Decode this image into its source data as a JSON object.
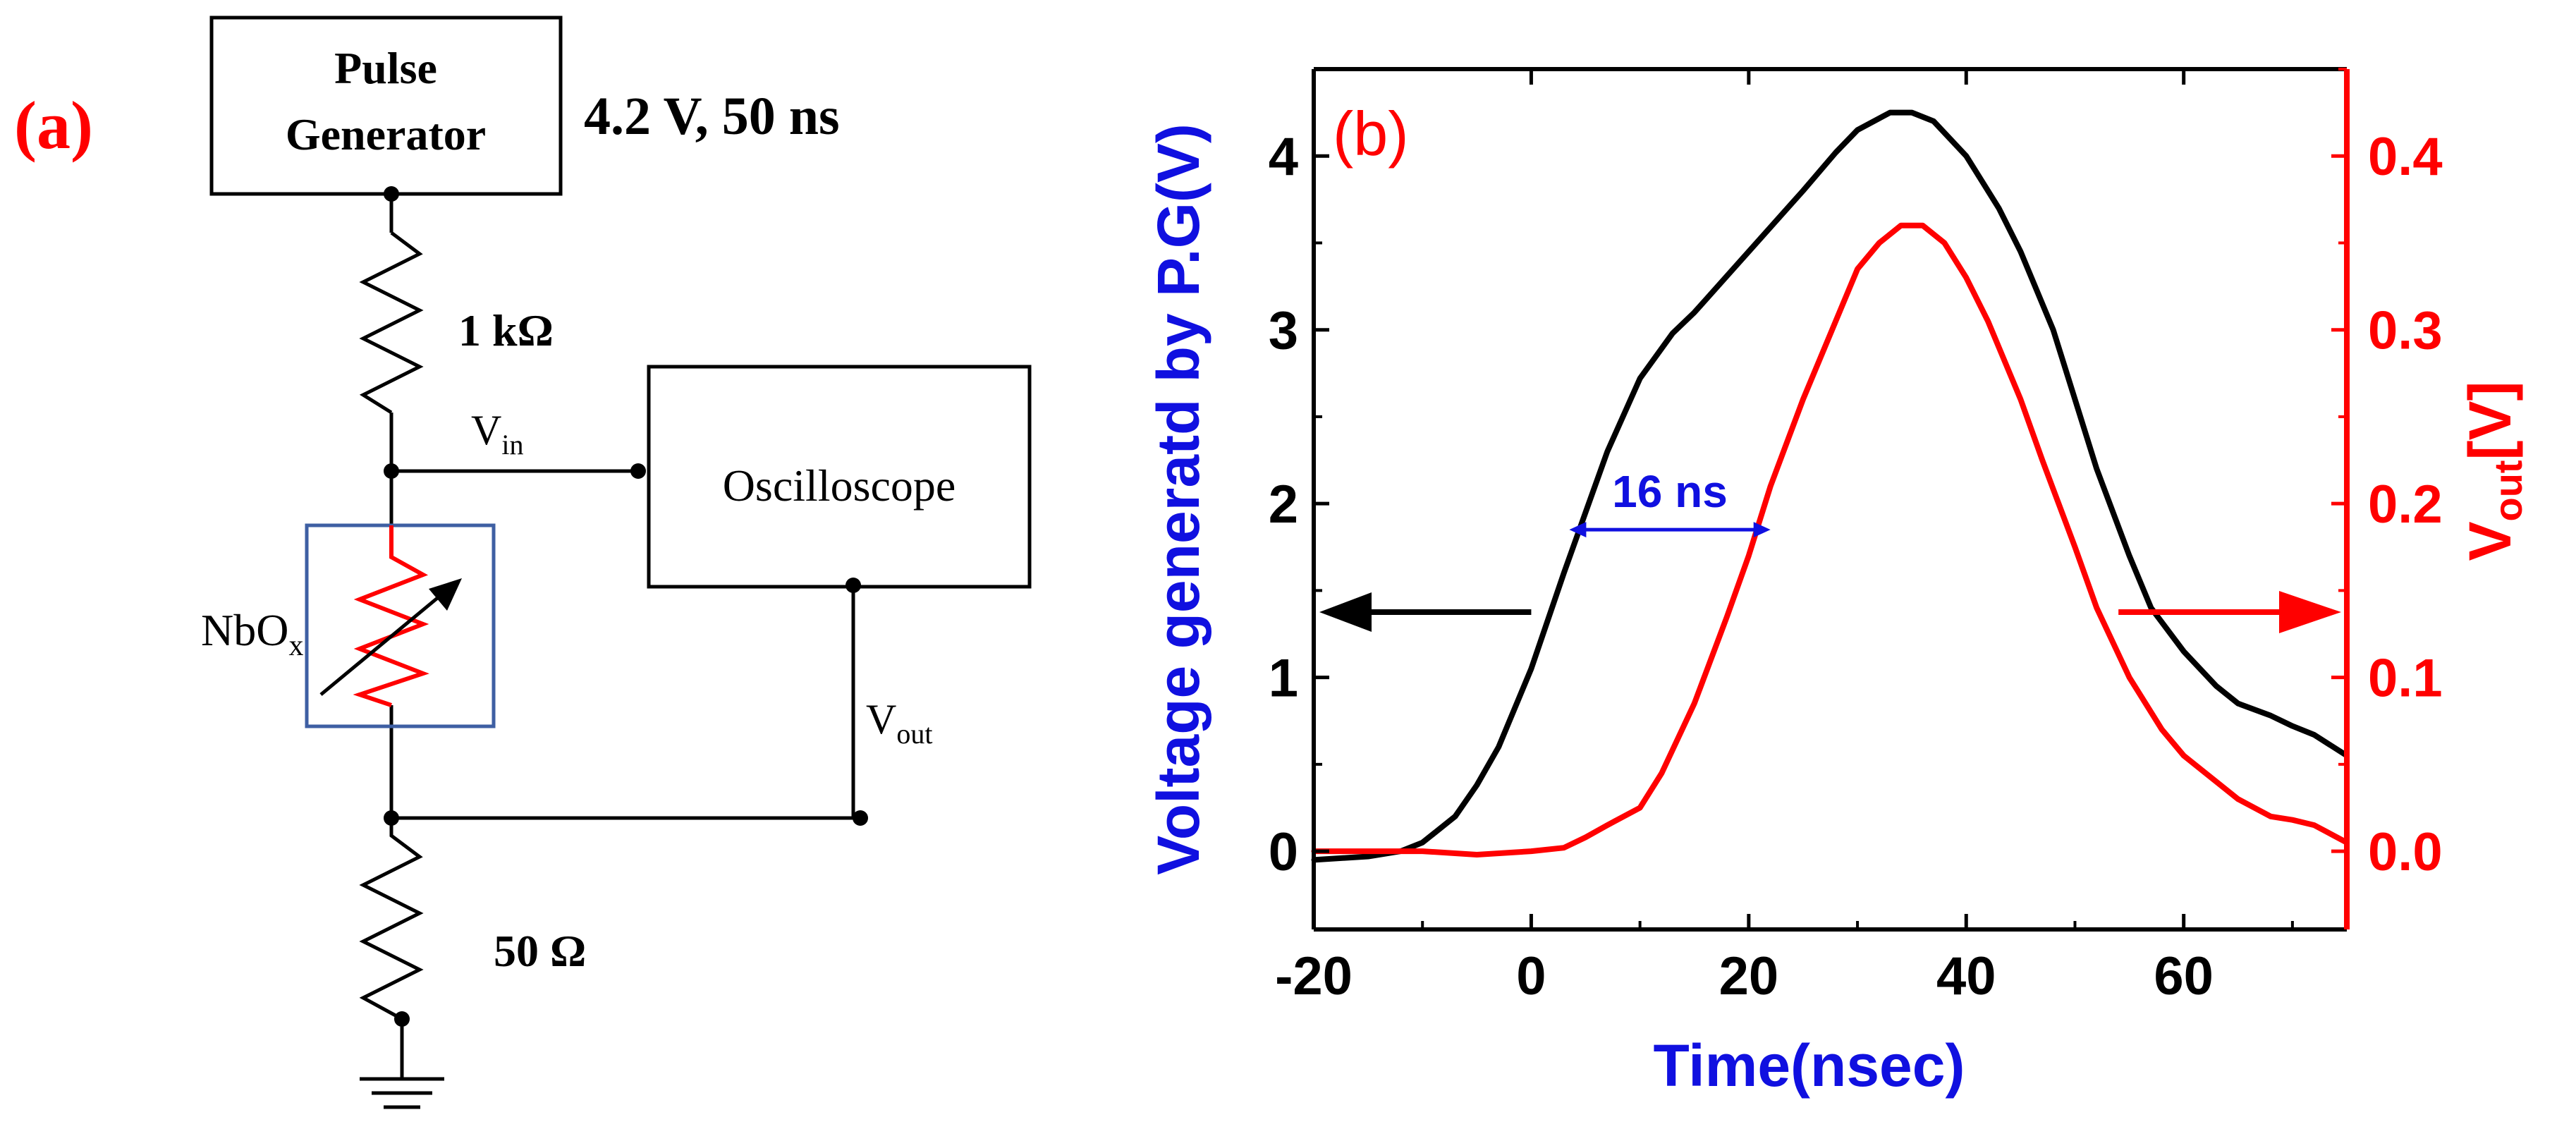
{
  "colors": {
    "black": "#000000",
    "red": "#ff0000",
    "blue": "#1010e0",
    "box_blue": "#3e5fa3"
  },
  "panel_a": {
    "label": "(a)",
    "pulse_generator": {
      "line1": "Pulse",
      "line2": "Generator"
    },
    "pulse_spec": "4.2 V, 50 ns",
    "resistor_top": "1 kΩ",
    "resistor_bottom": "50 Ω",
    "vin_main": "V",
    "vin_sub": "in",
    "oscilloscope": "Oscilloscope",
    "device_main": "NbO",
    "device_sub": "x",
    "vout_main": "V",
    "vout_sub": "out"
  },
  "chart_data": {
    "type": "line",
    "panel_label": "(b)",
    "xlabel": "Time(nsec)",
    "ylabel_left": "Voltage generatd by P.G(V)",
    "ylabel_right_main": "V",
    "ylabel_right_sub": "out",
    "ylabel_right_tail": "[V]",
    "xlim": [
      -20,
      75
    ],
    "ylim_left": [
      -0.45,
      4.5
    ],
    "ylim_right": [
      -0.045,
      0.45
    ],
    "x_ticks": [
      -20,
      0,
      20,
      40,
      60
    ],
    "y_left_ticks": [
      0,
      1,
      2,
      3,
      4
    ],
    "y_right_ticks": [
      "0.0",
      "0.1",
      "0.2",
      "0.3",
      "0.4"
    ],
    "series": [
      {
        "name": "Voltage generated by P.G (V)",
        "axis": "left",
        "color": "#000000",
        "x": [
          -20,
          -15,
          -12,
          -10,
          -7,
          -5,
          -3,
          0,
          3,
          5,
          7,
          10,
          13,
          15,
          20,
          25,
          28,
          30,
          33,
          35,
          37,
          40,
          43,
          45,
          48,
          50,
          52,
          55,
          57,
          60,
          63,
          65,
          68,
          70,
          72,
          75
        ],
        "values": [
          -0.05,
          -0.03,
          0.0,
          0.05,
          0.2,
          0.38,
          0.6,
          1.05,
          1.6,
          1.95,
          2.3,
          2.72,
          2.98,
          3.1,
          3.45,
          3.8,
          4.02,
          4.15,
          4.25,
          4.25,
          4.2,
          4.0,
          3.7,
          3.45,
          3.0,
          2.6,
          2.2,
          1.7,
          1.4,
          1.15,
          0.95,
          0.85,
          0.78,
          0.72,
          0.67,
          0.55
        ]
      },
      {
        "name": "Vout (V)",
        "axis": "right",
        "color": "#ff0000",
        "x": [
          -20,
          -15,
          -10,
          -5,
          0,
          3,
          5,
          7,
          10,
          12,
          15,
          18,
          20,
          22,
          25,
          28,
          30,
          32,
          34,
          36,
          38,
          40,
          42,
          45,
          47,
          50,
          52,
          55,
          58,
          60,
          63,
          65,
          68,
          70,
          72,
          75
        ],
        "values": [
          0.0,
          0.0,
          0.0,
          -0.002,
          0.0,
          0.002,
          0.008,
          0.015,
          0.025,
          0.045,
          0.085,
          0.135,
          0.17,
          0.21,
          0.26,
          0.305,
          0.335,
          0.35,
          0.36,
          0.36,
          0.35,
          0.33,
          0.305,
          0.26,
          0.225,
          0.175,
          0.14,
          0.1,
          0.07,
          0.055,
          0.04,
          0.03,
          0.02,
          0.018,
          0.015,
          0.005
        ]
      }
    ],
    "annotations": {
      "delay_label": "16 ns",
      "delay_from": 3.5,
      "delay_to": 22,
      "delay_y": 1.85
    }
  }
}
